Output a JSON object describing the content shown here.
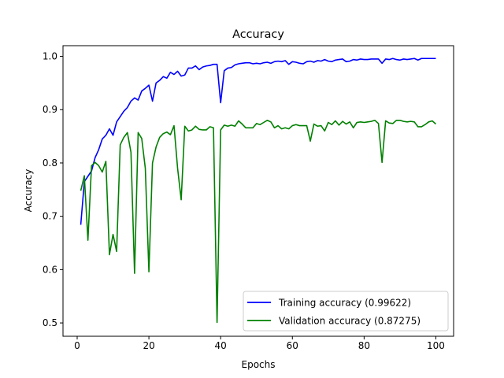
{
  "chart_data": {
    "type": "line",
    "title": "Accuracy",
    "xlabel": "Epochs",
    "ylabel": "Accuracy",
    "xlim": [
      -3.95,
      104.95
    ],
    "ylim": [
      0.475,
      1.02
    ],
    "xticks": [
      0,
      20,
      40,
      60,
      80,
      100
    ],
    "yticks": [
      0.5,
      0.6,
      0.7,
      0.8,
      0.9,
      1.0
    ],
    "xtick_labels": [
      "0",
      "20",
      "40",
      "60",
      "80",
      "100"
    ],
    "ytick_labels": [
      "0.5",
      "0.6",
      "0.7",
      "0.8",
      "0.9",
      "1.0"
    ],
    "grid": false,
    "legend_position": "lower-right",
    "x": [
      1,
      2,
      3,
      4,
      5,
      6,
      7,
      8,
      9,
      10,
      11,
      12,
      13,
      14,
      15,
      16,
      17,
      18,
      19,
      20,
      21,
      22,
      23,
      24,
      25,
      26,
      27,
      28,
      29,
      30,
      31,
      32,
      33,
      34,
      35,
      36,
      37,
      38,
      39,
      40,
      41,
      42,
      43,
      44,
      45,
      46,
      47,
      48,
      49,
      50,
      51,
      52,
      53,
      54,
      55,
      56,
      57,
      58,
      59,
      60,
      61,
      62,
      63,
      64,
      65,
      66,
      67,
      68,
      69,
      70,
      71,
      72,
      73,
      74,
      75,
      76,
      77,
      78,
      79,
      80,
      81,
      82,
      83,
      84,
      85,
      86,
      87,
      88,
      89,
      90,
      91,
      92,
      93,
      94,
      95,
      96,
      97,
      98,
      99,
      100
    ],
    "series": [
      {
        "name": "Training accuracy (0.99622)",
        "color": "#0000ff",
        "values": [
          0.684,
          0.765,
          0.775,
          0.785,
          0.81,
          0.825,
          0.845,
          0.852,
          0.864,
          0.852,
          0.877,
          0.887,
          0.897,
          0.904,
          0.916,
          0.922,
          0.918,
          0.935,
          0.94,
          0.946,
          0.916,
          0.95,
          0.955,
          0.962,
          0.959,
          0.97,
          0.966,
          0.972,
          0.963,
          0.965,
          0.978,
          0.978,
          0.982,
          0.975,
          0.98,
          0.982,
          0.983,
          0.985,
          0.985,
          0.913,
          0.973,
          0.978,
          0.979,
          0.984,
          0.986,
          0.987,
          0.988,
          0.988,
          0.986,
          0.987,
          0.986,
          0.988,
          0.989,
          0.987,
          0.99,
          0.991,
          0.99,
          0.992,
          0.985,
          0.99,
          0.989,
          0.987,
          0.986,
          0.99,
          0.991,
          0.989,
          0.992,
          0.991,
          0.994,
          0.991,
          0.99,
          0.993,
          0.994,
          0.995,
          0.99,
          0.991,
          0.994,
          0.993,
          0.995,
          0.994,
          0.994,
          0.995,
          0.995,
          0.995,
          0.987,
          0.995,
          0.994,
          0.996,
          0.994,
          0.993,
          0.995,
          0.994,
          0.995,
          0.996,
          0.993,
          0.996,
          0.996,
          0.996,
          0.996,
          0.996
        ]
      },
      {
        "name": "Validation accuracy (0.87275)",
        "color": "#008000",
        "values": [
          0.748,
          0.776,
          0.655,
          0.795,
          0.801,
          0.795,
          0.783,
          0.803,
          0.628,
          0.666,
          0.634,
          0.834,
          0.848,
          0.857,
          0.82,
          0.593,
          0.857,
          0.846,
          0.79,
          0.596,
          0.8,
          0.83,
          0.848,
          0.855,
          0.858,
          0.853,
          0.87,
          0.79,
          0.731,
          0.869,
          0.86,
          0.862,
          0.869,
          0.863,
          0.862,
          0.862,
          0.868,
          0.866,
          0.501,
          0.862,
          0.871,
          0.869,
          0.871,
          0.869,
          0.879,
          0.873,
          0.866,
          0.866,
          0.866,
          0.874,
          0.872,
          0.876,
          0.88,
          0.877,
          0.866,
          0.87,
          0.864,
          0.866,
          0.864,
          0.87,
          0.872,
          0.87,
          0.87,
          0.87,
          0.841,
          0.873,
          0.869,
          0.87,
          0.86,
          0.876,
          0.872,
          0.879,
          0.871,
          0.878,
          0.873,
          0.877,
          0.866,
          0.876,
          0.877,
          0.876,
          0.877,
          0.878,
          0.88,
          0.874,
          0.801,
          0.879,
          0.875,
          0.874,
          0.88,
          0.88,
          0.878,
          0.877,
          0.878,
          0.877,
          0.868,
          0.868,
          0.872,
          0.877,
          0.879,
          0.873
        ]
      }
    ]
  }
}
